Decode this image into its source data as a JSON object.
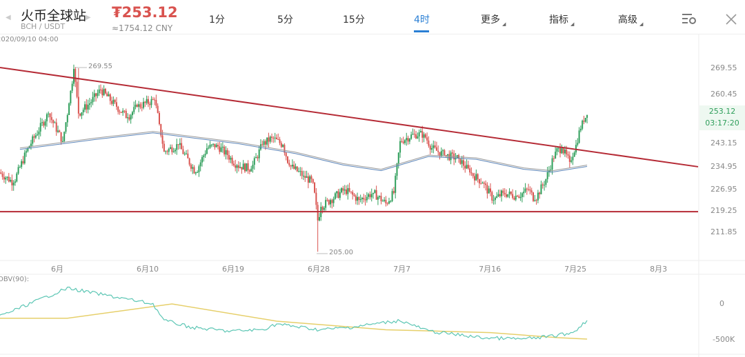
{
  "header": {
    "exchange": "火币全球站",
    "pair": "BCH / USDT",
    "price": "₮253.12",
    "price_cny": "≈1754.12 CNY",
    "tabs": [
      {
        "label": "1分"
      },
      {
        "label": "5分"
      },
      {
        "label": "15分"
      },
      {
        "label": "4时",
        "active": true
      },
      {
        "label": "更多"
      },
      {
        "label": "指标"
      },
      {
        "label": "高级"
      }
    ],
    "icons": [
      "chevron-left-icon",
      "chevron-right-icon",
      "chart-settings-icon",
      "close-icon"
    ]
  },
  "crosshair_date": "2020/09/10 04:00",
  "colors": {
    "up": "#2e9e5a",
    "down": "#d9534f",
    "trendline": "#b52a35",
    "active_tab": "#2a7fd4",
    "obv": "#5cc6b4",
    "obv_ma": "#e6cf6a"
  },
  "chart_data": [
    {
      "type": "candlestick",
      "yticks": [
        "269.55",
        "260.45",
        "253.12",
        "243.15",
        "234.95",
        "226.95",
        "219.25",
        "211.85"
      ],
      "xticks": [
        "6月",
        "6月10",
        "6月19",
        "6月28",
        "7月7",
        "7月16",
        "7月25",
        "8月3"
      ],
      "high_label": "269.55",
      "low_label": "205.00",
      "last_price": "253.12",
      "countdown": "03:17:20",
      "closes": [
        [
          "05-25 20:00",
          232.9
        ],
        [
          "05-27 08:00",
          229.3
        ],
        [
          "05-28 20:00",
          241.4
        ],
        [
          "05-31 00:00",
          253.6
        ],
        [
          "06-01 12:00",
          243.9
        ],
        [
          "06-02 04:00",
          257.2
        ],
        [
          "06-02 16:00",
          269.3
        ],
        [
          "06-03 04:00",
          253.6
        ],
        [
          "06-04 08:00",
          257.2
        ],
        [
          "06-05 12:00",
          262.0
        ],
        [
          "06-07 04:00",
          256.0
        ],
        [
          "06-08 08:00",
          252.3
        ],
        [
          "06-09 08:00",
          256.0
        ],
        [
          "06-11 04:00",
          258.4
        ],
        [
          "06-11 16:00",
          249.9
        ],
        [
          "06-12 04:00",
          240.2
        ],
        [
          "06-13 16:00",
          242.6
        ],
        [
          "06-15 12:00",
          232.9
        ],
        [
          "06-16 16:00",
          241.4
        ],
        [
          "06-17 16:00",
          242.6
        ],
        [
          "06-18 20:00",
          239.0
        ],
        [
          "06-19 20:00",
          235.4
        ],
        [
          "06-21 08:00",
          234.2
        ],
        [
          "06-22 12:00",
          242.6
        ],
        [
          "06-23 12:00",
          245.1
        ],
        [
          "06-24 16:00",
          242.6
        ],
        [
          "06-25 08:00",
          235.4
        ],
        [
          "06-26 20:00",
          231.7
        ],
        [
          "06-27 20:00",
          229.3
        ],
        [
          "06-28 08:00",
          216.0
        ],
        [
          "06-28 16:00",
          220.8
        ],
        [
          "06-29 16:00",
          223.2
        ],
        [
          "07-01 04:00",
          226.9
        ],
        [
          "07-02 16:00",
          223.2
        ],
        [
          "07-04 04:00",
          225.7
        ],
        [
          "07-05 12:00",
          222.0
        ],
        [
          "07-06 08:00",
          225.7
        ],
        [
          "07-07 00:00",
          243.9
        ],
        [
          "07-08 12:00",
          246.3
        ],
        [
          "07-09 12:00",
          246.3
        ],
        [
          "07-10 08:00",
          241.4
        ],
        [
          "07-11 16:00",
          239.0
        ],
        [
          "07-13 04:00",
          237.8
        ],
        [
          "07-14 08:00",
          232.9
        ],
        [
          "07-15 16:00",
          229.3
        ],
        [
          "07-16 20:00",
          223.2
        ],
        [
          "07-17 20:00",
          225.7
        ],
        [
          "07-19 08:00",
          224.5
        ],
        [
          "07-20 12:00",
          226.9
        ],
        [
          "07-21 04:00",
          223.2
        ],
        [
          "07-22 08:00",
          230.5
        ],
        [
          "07-23 08:00",
          240.2
        ],
        [
          "07-24 00:00",
          241.4
        ],
        [
          "07-24 20:00",
          236.6
        ],
        [
          "07-25 12:00",
          242.6
        ],
        [
          "07-26 04:00",
          251.1
        ],
        [
          "07-26 16:00",
          253.12
        ]
      ],
      "moving_average": [
        [
          "05-28 00:00",
          241.5
        ],
        [
          "06-05 00:00",
          245
        ],
        [
          "06-11 00:00",
          247.3
        ],
        [
          "06-20 00:00",
          243.5
        ],
        [
          "06-26 00:00",
          240
        ],
        [
          "07-01 00:00",
          236
        ],
        [
          "07-05 00:00",
          234
        ],
        [
          "07-10 00:00",
          239
        ],
        [
          "07-15 00:00",
          238
        ],
        [
          "07-20 00:00",
          234.5
        ],
        [
          "07-23 00:00",
          233.5
        ],
        [
          "07-26 16:00",
          235.5
        ]
      ],
      "trendlines": [
        {
          "from": [
            "05-25 12:00",
            269.8
          ],
          "to": [
            "08-05 00:00",
            234.9
          ]
        },
        {
          "horizontal": 219.1
        }
      ]
    },
    {
      "type": "line",
      "label": "OBV(90):",
      "yticks": [
        "0",
        "-500K"
      ],
      "obv": [
        [
          "05-25 12:00",
          -190000
        ],
        [
          "06-02 00:00",
          220000
        ],
        [
          "06-11 00:00",
          0
        ],
        [
          "06-12 04:00",
          -230000
        ],
        [
          "06-15 04:00",
          -330000
        ],
        [
          "06-19 00:00",
          -380000
        ],
        [
          "06-22 12:00",
          -360000
        ],
        [
          "06-24 00:00",
          -280000
        ],
        [
          "06-28 12:00",
          -360000
        ],
        [
          "07-01 12:00",
          -330000
        ],
        [
          "07-07 00:00",
          -230000
        ],
        [
          "07-10 00:00",
          -380000
        ],
        [
          "07-15 12:00",
          -470000
        ],
        [
          "07-20 00:00",
          -490000
        ],
        [
          "07-23 00:00",
          -450000
        ],
        [
          "07-25 04:00",
          -400000
        ],
        [
          "07-26 16:00",
          -230000
        ]
      ],
      "obv_ma": [
        [
          "05-25 12:00",
          -200000
        ],
        [
          "06-02 00:00",
          -200000
        ],
        [
          "06-13 00:00",
          0
        ],
        [
          "06-24 00:00",
          -240000
        ],
        [
          "07-05 12:00",
          -360000
        ],
        [
          "07-16 12:00",
          -400000
        ],
        [
          "07-23 12:00",
          -470000
        ],
        [
          "07-26 16:00",
          -490000
        ]
      ]
    }
  ]
}
